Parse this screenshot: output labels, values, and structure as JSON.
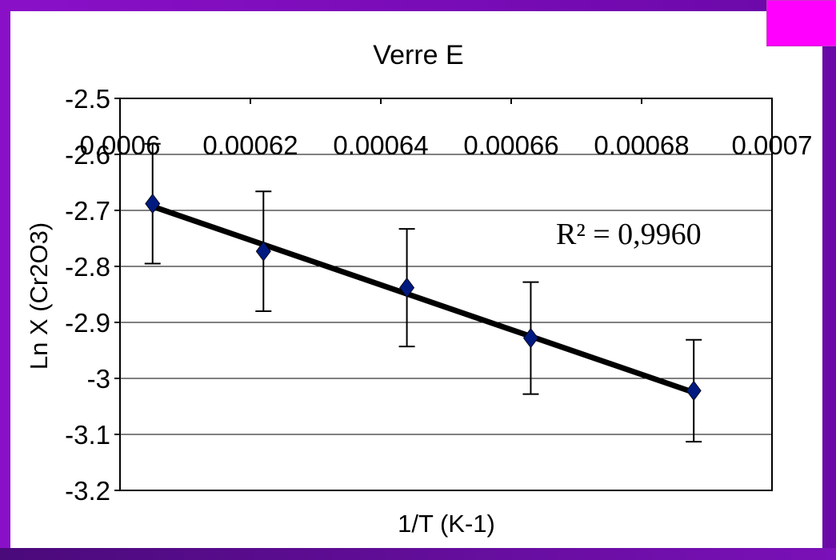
{
  "chart_data": {
    "type": "scatter",
    "title": "Verre E",
    "xlabel": "1/T (K-1)",
    "ylabel": "Ln X (Cr2O3)",
    "xlim": [
      0.0006,
      0.0007
    ],
    "ylim": [
      -3.2,
      -2.5
    ],
    "x_ticks": [
      "0.0006",
      "0.00062",
      "0.00064",
      "0.00066",
      "0.00068",
      "0.0007"
    ],
    "y_ticks": [
      "-2.5",
      "-2.6",
      "-2.7",
      "-2.8",
      "-2.9",
      "-3",
      "-3.1",
      "-3.2"
    ],
    "x_tick_values": [
      0.0006,
      0.00062,
      0.00064,
      0.00066,
      0.00068,
      0.0007
    ],
    "y_tick_values": [
      -2.5,
      -2.6,
      -2.7,
      -2.8,
      -2.9,
      -3.0,
      -3.1,
      -3.2
    ],
    "grid": "horizontal",
    "series": [
      {
        "marker_color": "#001a80",
        "x": [
          0.000605,
          0.000622,
          0.000644,
          0.000663,
          0.000688
        ],
        "y": [
          -2.688,
          -2.773,
          -2.838,
          -2.928,
          -3.022
        ],
        "error": [
          0.107,
          0.107,
          0.105,
          0.1,
          0.091
        ]
      }
    ],
    "trendline": {
      "x": [
        0.000605,
        0.000688
      ],
      "y": [
        -2.693,
        -3.025
      ],
      "color": "#000000"
    },
    "annotation": "R² = 0,9960"
  },
  "colors": {
    "frame": "#7a10b8",
    "corner_box": "#ff00ff",
    "plot_bg": "#ffffff"
  }
}
